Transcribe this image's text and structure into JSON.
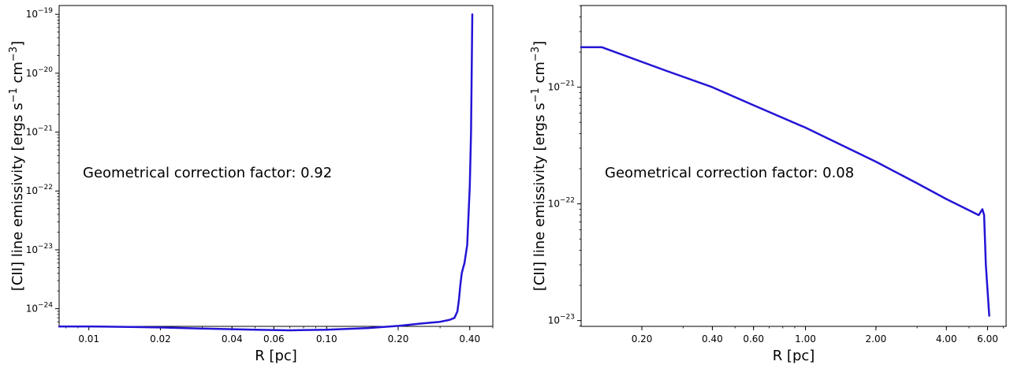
{
  "colors": {
    "series": "#2414d6",
    "axis": "#000000"
  },
  "chart_data": [
    {
      "type": "line",
      "xscale": "log",
      "yscale": "log",
      "xlabel": "R [pc]",
      "ylabel": "[CII] line emissivity [ergs s$^{-1}$ cm$^{-3}$]",
      "ylabel_parts": {
        "pre": "[CII] line emissivity [ergs s",
        "exp1": "−1",
        "mid": " cm",
        "exp2": "−3",
        "post": "]"
      },
      "annotation": "Geometrical correction factor: 0.92",
      "xlim": [
        0.0075,
        0.5
      ],
      "ylim_exp": [
        -24.3,
        -18.85
      ],
      "x_ticks": [
        {
          "value": 0.01,
          "label": "0.01"
        },
        {
          "value": 0.02,
          "label": "0.02"
        },
        {
          "value": 0.04,
          "label": "0.04"
        },
        {
          "value": 0.06,
          "label": "0.06"
        },
        {
          "value": 0.1,
          "label": "0.10"
        },
        {
          "value": 0.2,
          "label": "0.20"
        },
        {
          "value": 0.4,
          "label": "0.40"
        }
      ],
      "y_ticks": [
        {
          "exp": -24,
          "base": "10",
          "sup": "−24"
        },
        {
          "exp": -23,
          "base": "10",
          "sup": "−23"
        },
        {
          "exp": -22,
          "base": "10",
          "sup": "−22"
        },
        {
          "exp": -21,
          "base": "10",
          "sup": "−21"
        },
        {
          "exp": -20,
          "base": "10",
          "sup": "−20"
        },
        {
          "exp": -19,
          "base": "10",
          "sup": "−19"
        }
      ],
      "series": [
        {
          "x": [
            0.0075,
            0.01,
            0.015,
            0.02,
            0.03,
            0.05,
            0.07,
            0.1,
            0.15,
            0.2,
            0.25,
            0.3,
            0.33,
            0.345,
            0.355,
            0.36,
            0.365,
            0.37,
            0.38,
            0.39,
            0.4,
            0.405,
            0.41
          ],
          "y": [
            5e-25,
            5e-25,
            4.9e-25,
            4.8e-25,
            4.6e-25,
            4.4e-25,
            4.3e-25,
            4.4e-25,
            4.7e-25,
            5.1e-25,
            5.6e-25,
            6e-25,
            6.5e-25,
            7e-25,
            9e-25,
            1.4e-24,
            2.5e-24,
            4e-24,
            6e-24,
            1.2e-23,
            1.2e-22,
            1e-21,
            1e-19
          ]
        }
      ]
    },
    {
      "type": "line",
      "xscale": "log",
      "yscale": "log",
      "xlabel": "R [pc]",
      "ylabel": "[CII] line emissivity [ergs s$^{-1}$ cm$^{-3}$]",
      "ylabel_parts": {
        "pre": "[CII] line emissivity [ergs s",
        "exp1": "−1",
        "mid": " cm",
        "exp2": "−3",
        "post": "]"
      },
      "annotation": "Geometrical correction factor: 0.08",
      "xlim": [
        0.11,
        7.2
      ],
      "ylim_exp": [
        -23.05,
        -20.3
      ],
      "x_ticks": [
        {
          "value": 0.2,
          "label": "0.20"
        },
        {
          "value": 0.4,
          "label": "0.40"
        },
        {
          "value": 0.6,
          "label": "0.60"
        },
        {
          "value": 1.0,
          "label": "1.00"
        },
        {
          "value": 2.0,
          "label": "2.00"
        },
        {
          "value": 4.0,
          "label": "4.00"
        },
        {
          "value": 6.0,
          "label": "6.00"
        }
      ],
      "y_ticks": [
        {
          "exp": -23,
          "base": "10",
          "sup": "−23"
        },
        {
          "exp": -22,
          "base": "10",
          "sup": "−22"
        },
        {
          "exp": -21,
          "base": "10",
          "sup": "−21"
        }
      ],
      "series": [
        {
          "x": [
            0.11,
            0.135,
            0.25,
            0.4,
            0.6,
            1.0,
            2.0,
            3.0,
            4.0,
            5.5,
            5.7,
            5.8,
            5.9,
            6.1
          ],
          "y": [
            2.2e-21,
            2.2e-21,
            1.4e-21,
            1e-21,
            7e-22,
            4.5e-22,
            2.3e-22,
            1.5e-22,
            1.1e-22,
            8e-23,
            9e-23,
            8e-23,
            3e-23,
            1.1e-23
          ]
        }
      ]
    }
  ]
}
